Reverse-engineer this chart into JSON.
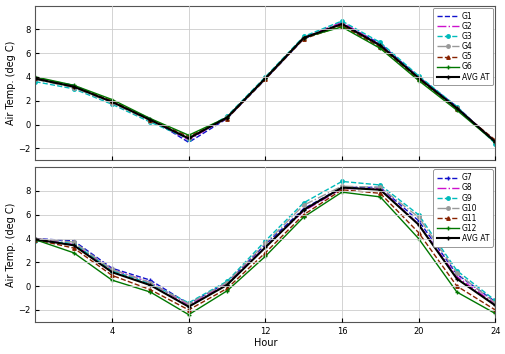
{
  "hours": [
    0,
    2,
    4,
    6,
    8,
    10,
    12,
    14,
    16,
    18,
    20,
    22,
    24
  ],
  "top": {
    "G1": [
      3.9,
      3.3,
      1.9,
      0.5,
      -1.5,
      0.5,
      3.8,
      7.2,
      8.5,
      6.8,
      4.0,
      1.5,
      -1.5
    ],
    "G2": [
      3.9,
      3.2,
      1.9,
      0.4,
      -1.3,
      0.6,
      3.9,
      7.3,
      8.6,
      6.7,
      4.0,
      1.4,
      -1.4
    ],
    "G3": [
      3.6,
      3.0,
      1.7,
      0.2,
      -1.2,
      0.7,
      4.0,
      7.4,
      8.7,
      6.9,
      4.1,
      1.5,
      -1.6
    ],
    "G4": [
      3.8,
      3.1,
      1.8,
      0.3,
      -1.1,
      0.6,
      3.9,
      7.3,
      8.4,
      6.6,
      3.9,
      1.4,
      -1.4
    ],
    "G5": [
      3.9,
      3.2,
      2.0,
      0.4,
      -1.0,
      0.5,
      3.8,
      7.2,
      8.3,
      6.5,
      3.8,
      1.3,
      -1.3
    ],
    "G6": [
      4.0,
      3.3,
      2.1,
      0.5,
      -0.9,
      0.6,
      3.9,
      7.3,
      8.2,
      6.4,
      3.7,
      1.2,
      -1.5
    ],
    "AVG AT": [
      3.85,
      3.18,
      1.9,
      0.38,
      -1.17,
      0.58,
      3.88,
      7.28,
      8.45,
      6.65,
      3.92,
      1.38,
      -1.45
    ]
  },
  "bottom": {
    "G7": [
      4.0,
      3.8,
      1.5,
      0.5,
      -1.5,
      0.3,
      3.5,
      6.5,
      8.3,
      8.3,
      5.5,
      1.0,
      -1.3
    ],
    "G8": [
      4.0,
      3.5,
      1.4,
      0.3,
      -1.6,
      0.2,
      3.3,
      6.3,
      8.2,
      8.2,
      5.2,
      0.8,
      -1.5
    ],
    "G9": [
      3.8,
      3.6,
      1.3,
      0.2,
      -1.4,
      0.4,
      3.8,
      7.0,
      8.8,
      8.5,
      6.0,
      1.3,
      -1.2
    ],
    "G10": [
      4.0,
      3.7,
      1.4,
      0.3,
      -1.5,
      0.3,
      3.6,
      6.8,
      8.4,
      8.3,
      5.8,
      1.1,
      -1.4
    ],
    "G11": [
      3.9,
      3.2,
      0.9,
      -0.3,
      -2.0,
      -0.2,
      2.8,
      6.0,
      8.1,
      7.8,
      4.5,
      0.0,
      -2.0
    ],
    "G12": [
      3.9,
      2.8,
      0.5,
      -0.5,
      -2.4,
      -0.4,
      2.5,
      5.8,
      7.9,
      7.5,
      4.0,
      -0.5,
      -2.3
    ],
    "AVG AT": [
      3.93,
      3.43,
      1.17,
      0.08,
      -1.73,
      0.1,
      3.25,
      6.4,
      8.28,
      8.1,
      5.17,
      0.62,
      -1.62
    ]
  },
  "top_styles": {
    "G1": {
      "color": "#1111CC",
      "linestyle": "--",
      "marker": "None",
      "linewidth": 1.0
    },
    "G2": {
      "color": "#CC11CC",
      "linestyle": "-.",
      "marker": "None",
      "linewidth": 1.0
    },
    "G3": {
      "color": "#00BBBB",
      "linestyle": "--",
      "marker": "o",
      "linewidth": 1.0
    },
    "G4": {
      "color": "#999999",
      "linestyle": "-.",
      "marker": "o",
      "linewidth": 1.0
    },
    "G5": {
      "color": "#882200",
      "linestyle": "--",
      "marker": "^",
      "linewidth": 1.0
    },
    "G6": {
      "color": "#007700",
      "linestyle": "-",
      "marker": "+",
      "linewidth": 1.0
    },
    "AVG AT": {
      "color": "#000000",
      "linestyle": "-",
      "marker": "+",
      "linewidth": 1.5
    }
  },
  "bottom_styles": {
    "G7": {
      "color": "#1111CC",
      "linestyle": "--",
      "marker": "+",
      "linewidth": 1.0
    },
    "G8": {
      "color": "#CC11CC",
      "linestyle": "-.",
      "marker": "None",
      "linewidth": 1.0
    },
    "G9": {
      "color": "#00BBBB",
      "linestyle": "--",
      "marker": "o",
      "linewidth": 1.0
    },
    "G10": {
      "color": "#999999",
      "linestyle": "-.",
      "marker": "o",
      "linewidth": 1.0
    },
    "G11": {
      "color": "#882200",
      "linestyle": "--",
      "marker": "^",
      "linewidth": 1.0
    },
    "G12": {
      "color": "#007700",
      "linestyle": "-",
      "marker": "+",
      "linewidth": 1.0
    },
    "AVG AT": {
      "color": "#000000",
      "linestyle": "-",
      "marker": "+",
      "linewidth": 1.5
    }
  },
  "xlim": [
    0,
    24
  ],
  "xticks": [
    4,
    8,
    12,
    16,
    20,
    24
  ],
  "ylim": [
    -3,
    10
  ],
  "yticks": [
    -2,
    0,
    2,
    4,
    6,
    8
  ],
  "ylabel": "Air Temp. (deg C)",
  "xlabel": "Hour",
  "bg_color": "#FFFFFF",
  "plot_bg": "#FFFFFF",
  "legend_fontsize": 5.5,
  "axis_fontsize": 7,
  "tick_fontsize": 6
}
